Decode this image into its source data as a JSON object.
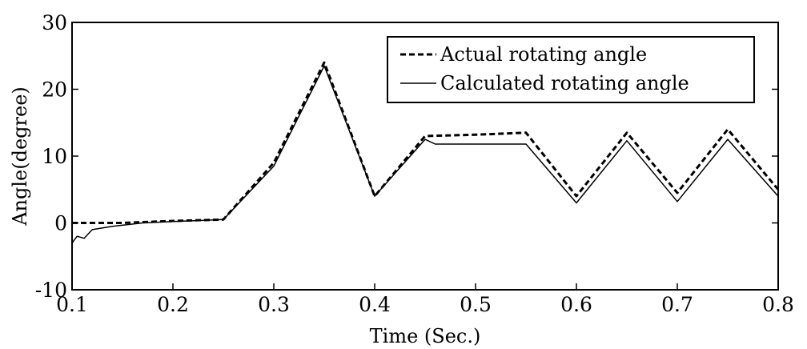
{
  "chart_data": {
    "type": "line",
    "xlabel": "Time (Sec.)",
    "ylabel": "Angle(degree)",
    "xlim": [
      0.1,
      0.8
    ],
    "ylim": [
      -10,
      30
    ],
    "xticks": [
      "0.1",
      "0.2",
      "0.3",
      "0.4",
      "0.5",
      "0.6",
      "0.7",
      "0.8"
    ],
    "yticks": [
      "-10",
      "0",
      "10",
      "20",
      "30"
    ],
    "grid": false,
    "legend_position": "top-right",
    "series": [
      {
        "name": "Actual rotating angle",
        "style": "dashed",
        "color": "#000000",
        "points": [
          [
            0.1,
            0
          ],
          [
            0.15,
            0
          ],
          [
            0.2,
            0.3
          ],
          [
            0.25,
            0.5
          ],
          [
            0.3,
            9
          ],
          [
            0.35,
            24
          ],
          [
            0.4,
            4
          ],
          [
            0.45,
            13
          ],
          [
            0.5,
            13.2
          ],
          [
            0.55,
            13.5
          ],
          [
            0.6,
            4
          ],
          [
            0.65,
            13.5
          ],
          [
            0.7,
            4.5
          ],
          [
            0.75,
            14
          ],
          [
            0.8,
            5
          ]
        ]
      },
      {
        "name": "Calculated rotating angle",
        "style": "solid",
        "color": "#000000",
        "points": [
          [
            0.1,
            -3
          ],
          [
            0.105,
            -2
          ],
          [
            0.112,
            -2.3
          ],
          [
            0.12,
            -1
          ],
          [
            0.14,
            -0.5
          ],
          [
            0.17,
            0
          ],
          [
            0.2,
            0.2
          ],
          [
            0.25,
            0.5
          ],
          [
            0.3,
            8.5
          ],
          [
            0.35,
            23.5
          ],
          [
            0.4,
            4
          ],
          [
            0.45,
            12.5
          ],
          [
            0.46,
            11.8
          ],
          [
            0.5,
            11.8
          ],
          [
            0.55,
            11.8
          ],
          [
            0.6,
            3
          ],
          [
            0.65,
            12.3
          ],
          [
            0.7,
            3.2
          ],
          [
            0.75,
            12.5
          ],
          [
            0.8,
            4
          ]
        ]
      }
    ]
  }
}
